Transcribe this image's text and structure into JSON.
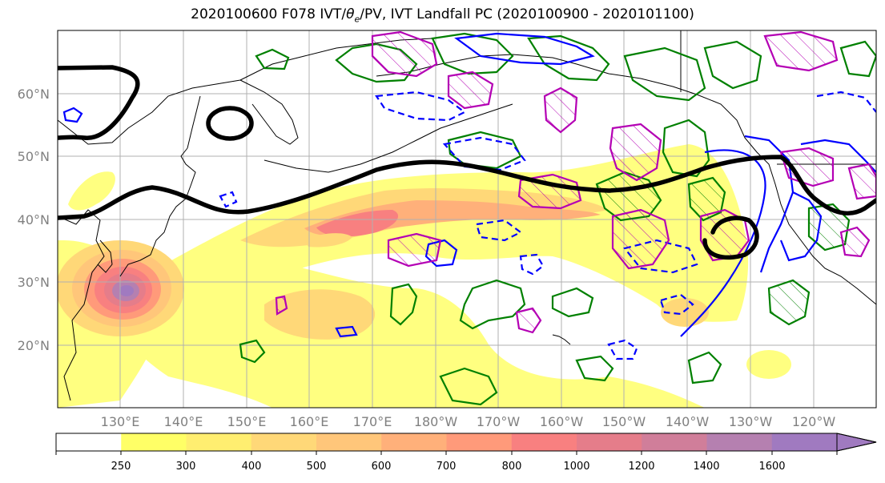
{
  "title_prefix": "2020100600 F078 IVT/",
  "title_theta": "θ",
  "title_sub": "e",
  "title_suffix": "/PV, IVT Landfall PC (2020100900 - 2020101100)",
  "map": {
    "lat_labels": [
      "60°N",
      "50°N",
      "40°N",
      "30°N",
      "20°N"
    ],
    "lon_labels": [
      "130°E",
      "140°E",
      "150°E",
      "160°E",
      "170°E",
      "180°W",
      "170°W",
      "160°W",
      "150°W",
      "140°W",
      "130°W",
      "120°W"
    ],
    "colors": {
      "theta_e_positive": "#008000",
      "theta_e_negative": "#0000ff",
      "pv": "#b400b4",
      "landfall_pc": "#000000",
      "gridline": "#b0b0b0",
      "coastline": "#000000"
    }
  },
  "colorbar": {
    "levels": [
      "250",
      "300",
      "400",
      "500",
      "600",
      "700",
      "800",
      "1000",
      "1200",
      "1400",
      "1600"
    ],
    "colors": [
      "#ffffff",
      "#ffff66",
      "#ffee70",
      "#ffd878",
      "#ffc67a",
      "#ffb07a",
      "#ff9a7a",
      "#f88080",
      "#e57d8a",
      "#d07e9a",
      "#b580b0",
      "#a07ac0"
    ]
  }
}
